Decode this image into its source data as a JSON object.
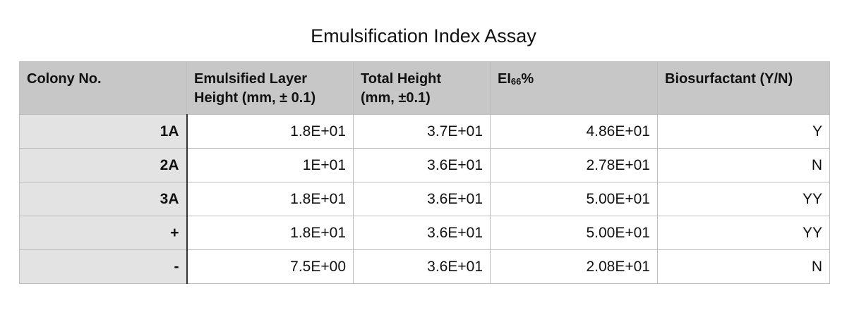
{
  "title": "Emulsification Index Assay",
  "table": {
    "headers": {
      "colony": "Colony No.",
      "emulsified_line1": "Emulsified Layer",
      "emulsified_line2": "Height (mm, ± 0.1)",
      "total_line1": "Total Height",
      "total_line2": "(mm, ±0.1)",
      "ei_base": "EI",
      "ei_sub": "66",
      "ei_suffix": "%",
      "biosurfactant": "Biosurfactant (Y/N)"
    },
    "rows": [
      {
        "colony": "1A",
        "emulsified": "1.8E+01",
        "total": "3.7E+01",
        "ei": "4.86E+01",
        "bio": "Y"
      },
      {
        "colony": "2A",
        "emulsified": "1E+01",
        "total": "3.6E+01",
        "ei": "2.78E+01",
        "bio": "N"
      },
      {
        "colony": "3A",
        "emulsified": "1.8E+01",
        "total": "3.6E+01",
        "ei": "5.00E+01",
        "bio": "YY"
      },
      {
        "colony": "+",
        "emulsified": "1.8E+01",
        "total": "3.6E+01",
        "ei": "5.00E+01",
        "bio": "YY"
      },
      {
        "colony": "-",
        "emulsified": "7.5E+00",
        "total": "3.6E+01",
        "ei": "2.08E+01",
        "bio": "N"
      }
    ]
  },
  "colors": {
    "header_bg": "#c7c7c7",
    "row_header_bg": "#e3e3e3",
    "border": "#bdbdbd"
  }
}
